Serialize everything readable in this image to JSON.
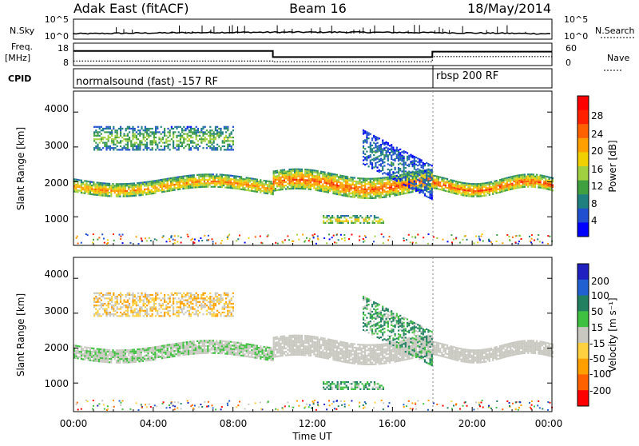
{
  "header": {
    "title": "Adak East (fitACF)",
    "beam": "Beam 16",
    "date": "18/May/2014"
  },
  "nsky_panel": {
    "left_label": "N.Sky",
    "right_label": "N.Search",
    "left_ticks": [
      "10^5",
      "10^0"
    ],
    "right_ticks": [
      "10^5",
      "10^0"
    ]
  },
  "freq_panel": {
    "left_label_1": "Freq.",
    "left_label_2": "[MHz]",
    "right_label": "Nave",
    "left_ticks": [
      "18",
      "8"
    ],
    "right_ticks": [
      "60",
      "0"
    ]
  },
  "cpid": {
    "label": "CPID",
    "program_1": "normalsound (fast) -157 RF",
    "program_2": "rbsp 200 RF"
  },
  "power_panel": {
    "ylabel": "Slant Range [km]",
    "yticks": [
      "4000",
      "3000",
      "2000",
      "1000"
    ],
    "colorbar_label": "Power [dB]",
    "colorbar_ticks": [
      "28",
      "24",
      "20",
      "16",
      "12",
      "8",
      "4"
    ],
    "colors": [
      "#0000ff",
      "#2050d0",
      "#208080",
      "#40a040",
      "#a0d040",
      "#f0d000",
      "#ffa000",
      "#ff6000",
      "#ff2000",
      "#ff0000"
    ]
  },
  "velocity_panel": {
    "ylabel": "Slant Range [km]",
    "yticks": [
      "4000",
      "3000",
      "2000",
      "1000"
    ],
    "colorbar_label": "Velocity [m s⁻¹]",
    "colorbar_ticks": [
      "200",
      "100",
      "50",
      "15",
      "-15",
      "-50",
      "-100",
      "-200"
    ],
    "colors": [
      "#2020c0",
      "#2060d0",
      "#208060",
      "#40c040",
      "#c8c8c0",
      "#ffd040",
      "#ffa000",
      "#ff6000",
      "#ff0000"
    ]
  },
  "xaxis": {
    "title": "Time UT",
    "ticks": [
      "00:00",
      "04:00",
      "08:00",
      "12:00",
      "16:00",
      "20:00",
      "00:00"
    ]
  },
  "chart_data": {
    "type": "heatmap",
    "title": "Adak East (fitACF)",
    "subtitle": "Beam 16",
    "date": "18/May/2014",
    "xlabel": "Time UT",
    "ylabel": "Slant Range [km]",
    "xlim_hours": [
      0,
      24
    ],
    "ylim_km": [
      180,
      4600
    ],
    "frequency_mhz_segments": [
      {
        "start_hour": 0,
        "end_hour": 10,
        "value": 14.5
      },
      {
        "start_hour": 10,
        "end_hour": 18,
        "value": 11.8
      },
      {
        "start_hour": 18,
        "end_hour": 24,
        "value": 14.2
      }
    ],
    "program_change_hour": 18,
    "power_colorbar": {
      "label": "Power [dB]",
      "range": [
        0,
        30
      ]
    },
    "velocity_colorbar": {
      "label": "Velocity [m s-1]",
      "range": [
        -200,
        200
      ]
    },
    "echo_regions": [
      {
        "t_start": 0.0,
        "t_end": 10.0,
        "range_km": [
          1700,
          2100
        ],
        "power_db": 16,
        "velocity": 10,
        "description": "main band"
      },
      {
        "t_start": 10.0,
        "t_end": 18.0,
        "range_km": [
          1650,
          2250
        ],
        "power_db": 18,
        "velocity": 0,
        "description": "main band"
      },
      {
        "t_start": 18.0,
        "t_end": 24.0,
        "range_km": [
          1700,
          2100
        ],
        "power_db": 18,
        "velocity": 0,
        "description": "main band"
      },
      {
        "t_start": 1.0,
        "t_end": 8.0,
        "range_km": [
          2900,
          3600
        ],
        "power_db": 10,
        "velocity": -20,
        "description": "far echoes"
      },
      {
        "t_start": 12.5,
        "t_end": 15.5,
        "range_km": [
          800,
          1050
        ],
        "power_db": 14,
        "velocity": 30,
        "description": "near echoes"
      },
      {
        "t_start": 14.5,
        "t_end": 18.0,
        "range_km": [
          2500,
          3500
        ],
        "power_db": 6,
        "velocity": 30,
        "description": "descending"
      }
    ]
  }
}
